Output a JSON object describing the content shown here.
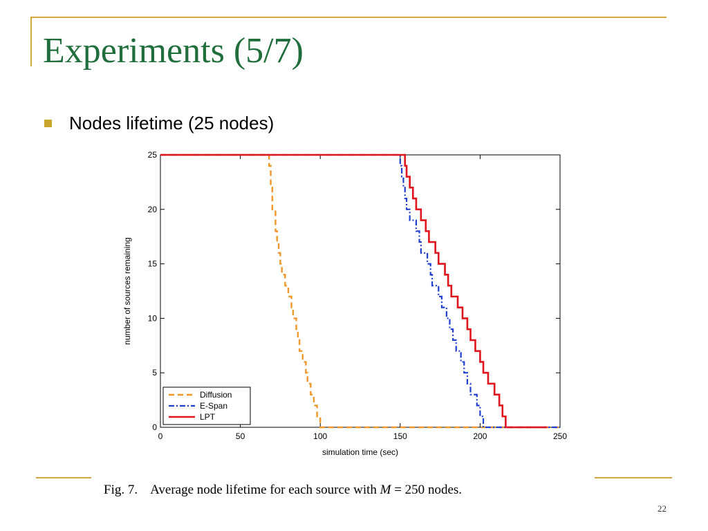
{
  "slide": {
    "title": "Experiments (5/7)",
    "bullet": "Nodes lifetime (25 nodes)",
    "page_number": "22"
  },
  "caption": {
    "label": "Fig. 7.",
    "text_before": "Average node lifetime for each source with",
    "var": "M",
    "eq": "= 250",
    "text_after": "nodes."
  },
  "colors": {
    "title": "#1f6e3b",
    "accent": "#d4a83c"
  },
  "chart_data": {
    "type": "line",
    "xlabel": "simulation time (sec)",
    "ylabel": "number of sources remaining",
    "xlim": [
      0,
      250
    ],
    "ylim": [
      0,
      25
    ],
    "xticks": [
      0,
      50,
      100,
      150,
      200,
      250
    ],
    "yticks": [
      0,
      5,
      10,
      15,
      20,
      25
    ],
    "grid": false,
    "legend_position": "bottom-left",
    "series": [
      {
        "name": "Diffusion",
        "color": "#f0972b",
        "style": "dashed",
        "points": [
          [
            0,
            25
          ],
          [
            67,
            25
          ],
          [
            68,
            24
          ],
          [
            69,
            22
          ],
          [
            70,
            20
          ],
          [
            72,
            18
          ],
          [
            73,
            17
          ],
          [
            74,
            16
          ],
          [
            75,
            15
          ],
          [
            76,
            14
          ],
          [
            78,
            13
          ],
          [
            80,
            12
          ],
          [
            82,
            11
          ],
          [
            83,
            10
          ],
          [
            85,
            9
          ],
          [
            86,
            8
          ],
          [
            87,
            7
          ],
          [
            89,
            6
          ],
          [
            91,
            5
          ],
          [
            92,
            4
          ],
          [
            94,
            3
          ],
          [
            96,
            2
          ],
          [
            98,
            1
          ],
          [
            100,
            0
          ],
          [
            250,
            0
          ]
        ]
      },
      {
        "name": "E-Span",
        "color": "#1f3fd0",
        "style": "dashdot",
        "points": [
          [
            0,
            25
          ],
          [
            149,
            25
          ],
          [
            150,
            24
          ],
          [
            151,
            23
          ],
          [
            152,
            22
          ],
          [
            153,
            21
          ],
          [
            154,
            20
          ],
          [
            156,
            19
          ],
          [
            160,
            18
          ],
          [
            162,
            17
          ],
          [
            163,
            16
          ],
          [
            167,
            15
          ],
          [
            169,
            14
          ],
          [
            170,
            13
          ],
          [
            174,
            12
          ],
          [
            176,
            11
          ],
          [
            179,
            10
          ],
          [
            181,
            9
          ],
          [
            183,
            8
          ],
          [
            185,
            7
          ],
          [
            188,
            6
          ],
          [
            190,
            5
          ],
          [
            192,
            4
          ],
          [
            194,
            3
          ],
          [
            198,
            2
          ],
          [
            200,
            1
          ],
          [
            202,
            0
          ],
          [
            250,
            0
          ]
        ]
      },
      {
        "name": "LPT",
        "color": "#e0141c",
        "style": "solid",
        "points": [
          [
            0,
            25
          ],
          [
            152,
            25
          ],
          [
            153,
            24
          ],
          [
            154,
            23
          ],
          [
            156,
            22
          ],
          [
            158,
            21
          ],
          [
            160,
            20
          ],
          [
            163,
            19
          ],
          [
            166,
            18
          ],
          [
            168,
            17
          ],
          [
            172,
            16
          ],
          [
            174,
            15
          ],
          [
            178,
            14
          ],
          [
            180,
            13
          ],
          [
            182,
            12
          ],
          [
            186,
            11
          ],
          [
            189,
            10
          ],
          [
            192,
            9
          ],
          [
            194,
            8
          ],
          [
            197,
            7
          ],
          [
            200,
            6
          ],
          [
            202,
            5
          ],
          [
            205,
            4
          ],
          [
            209,
            3
          ],
          [
            212,
            2
          ],
          [
            214,
            1
          ],
          [
            216,
            0
          ],
          [
            242,
            0
          ]
        ]
      }
    ]
  }
}
